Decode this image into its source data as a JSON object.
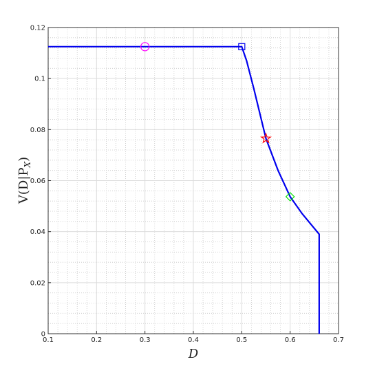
{
  "chart_data": {
    "type": "line",
    "xlabel": "D",
    "ylabel": {
      "text": "V(D|P",
      "subscript": "X",
      "suffix": ")"
    },
    "xlim": [
      0.1,
      0.7
    ],
    "xticks": [
      0.1,
      0.2,
      0.3,
      0.4,
      0.5,
      0.6,
      0.7
    ],
    "ylim": [
      0,
      0.12
    ],
    "yticks": [
      0,
      0.02,
      0.04,
      0.06,
      0.08,
      0.1,
      0.12
    ],
    "grid": true,
    "minor_grid": true,
    "series": [
      {
        "color": "#0000ee",
        "x": [
          0.1,
          0.5,
          0.51,
          0.525,
          0.55,
          0.575,
          0.6,
          0.625,
          0.66,
          0.66
        ],
        "y": [
          0.1125,
          0.1125,
          0.107,
          0.096,
          0.0765,
          0.064,
          0.0537,
          0.047,
          0.039,
          0
        ]
      }
    ],
    "markers": [
      {
        "x": 0.3,
        "y": 0.1125,
        "shape": "circle",
        "color": "#ff00ff"
      },
      {
        "x": 0.5,
        "y": 0.1125,
        "shape": "square",
        "color": "#0000ee"
      },
      {
        "x": 0.55,
        "y": 0.0765,
        "shape": "star",
        "color": "#ff0000"
      },
      {
        "x": 0.6,
        "y": 0.0537,
        "shape": "diamond",
        "color": "#00dd00"
      }
    ]
  }
}
